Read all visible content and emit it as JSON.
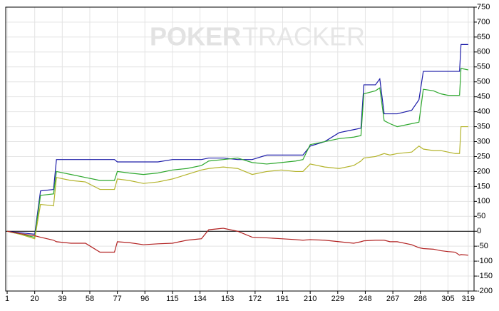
{
  "chart_data": {
    "type": "line",
    "watermark": [
      "POKER",
      "TRACKER"
    ],
    "x": [
      1,
      10,
      20,
      24,
      33,
      35,
      45,
      55,
      65,
      75,
      77,
      85,
      95,
      105,
      115,
      125,
      135,
      140,
      150,
      160,
      170,
      180,
      190,
      200,
      205,
      210,
      220,
      230,
      240,
      245,
      247,
      255,
      258,
      261,
      265,
      270,
      280,
      285,
      288,
      295,
      300,
      305,
      310,
      313,
      314,
      319
    ],
    "series": [
      {
        "color": "#1c1ca8",
        "values": [
          0,
          -5,
          -10,
          135,
          140,
          240,
          240,
          240,
          240,
          240,
          232,
          232,
          232,
          232,
          240,
          240,
          240,
          245,
          245,
          240,
          240,
          255,
          255,
          255,
          255,
          285,
          300,
          330,
          340,
          345,
          490,
          490,
          510,
          393,
          393,
          393,
          405,
          440,
          535,
          535,
          535,
          535,
          535,
          535,
          625,
          625
        ]
      },
      {
        "color": "#2ea82e",
        "values": [
          0,
          -10,
          -20,
          120,
          125,
          200,
          190,
          180,
          170,
          170,
          200,
          195,
          190,
          195,
          205,
          210,
          220,
          235,
          240,
          245,
          230,
          225,
          230,
          235,
          240,
          290,
          300,
          310,
          315,
          320,
          460,
          470,
          480,
          370,
          360,
          350,
          360,
          365,
          475,
          470,
          460,
          455,
          455,
          455,
          545,
          540
        ]
      },
      {
        "color": "#b4b42c",
        "values": [
          0,
          -10,
          -25,
          90,
          85,
          180,
          170,
          165,
          140,
          140,
          175,
          170,
          160,
          165,
          175,
          190,
          205,
          210,
          215,
          210,
          190,
          200,
          205,
          200,
          200,
          225,
          215,
          210,
          220,
          235,
          245,
          250,
          255,
          260,
          255,
          260,
          265,
          285,
          275,
          270,
          270,
          265,
          260,
          260,
          350,
          350
        ]
      },
      {
        "color": "#b22222",
        "values": [
          0,
          -8,
          -15,
          -20,
          -30,
          -35,
          -40,
          -40,
          -70,
          -70,
          -35,
          -38,
          -45,
          -42,
          -40,
          -30,
          -25,
          5,
          10,
          0,
          -20,
          -22,
          -25,
          -28,
          -30,
          -28,
          -30,
          -35,
          -40,
          -35,
          -32,
          -30,
          -30,
          -30,
          -35,
          -35,
          -45,
          -55,
          -58,
          -60,
          -65,
          -68,
          -70,
          -80,
          -78,
          -80
        ]
      }
    ],
    "xlim": [
      0,
      323
    ],
    "xticks": [
      1,
      20,
      39,
      58,
      77,
      96,
      115,
      134,
      153,
      172,
      191,
      210,
      229,
      248,
      267,
      286,
      305,
      319
    ],
    "ylim": [
      -200,
      750
    ],
    "yticks": [
      -200,
      -150,
      -100,
      -50,
      0,
      50,
      100,
      150,
      200,
      250,
      300,
      350,
      400,
      450,
      500,
      550,
      600,
      650,
      700,
      750
    ],
    "grid": true
  }
}
